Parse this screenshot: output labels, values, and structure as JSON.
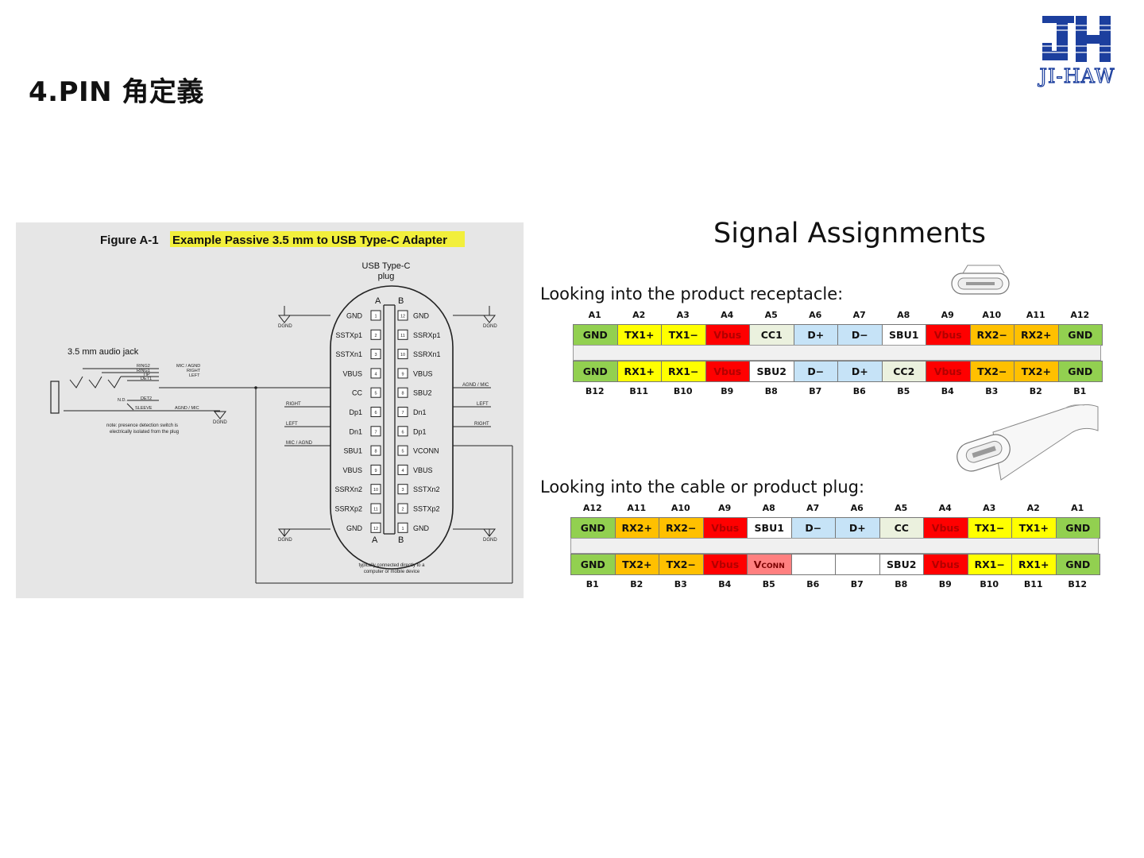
{
  "page": {
    "title": "4.PIN 角定義"
  },
  "logo": {
    "text": "JI-HAW",
    "brand_color": "#1c3f9e"
  },
  "figure": {
    "caption_prefix": "Figure A-1",
    "caption_highlight": "Example Passive 3.5 mm to USB Type-C Adapter",
    "plug_title_1": "USB Type-C",
    "plug_title_2": "plug",
    "side_a": "A",
    "side_b": "B",
    "left_pins": [
      {
        "num": "1",
        "name": "GND"
      },
      {
        "num": "2",
        "name": "SSTXp1"
      },
      {
        "num": "3",
        "name": "SSTXn1"
      },
      {
        "num": "4",
        "name": "VBUS"
      },
      {
        "num": "5",
        "name": "CC"
      },
      {
        "num": "6",
        "name": "Dp1"
      },
      {
        "num": "7",
        "name": "Dn1"
      },
      {
        "num": "8",
        "name": "SBU1"
      },
      {
        "num": "9",
        "name": "VBUS"
      },
      {
        "num": "10",
        "name": "SSRXn2"
      },
      {
        "num": "11",
        "name": "SSRXp2"
      },
      {
        "num": "12",
        "name": "GND"
      }
    ],
    "right_pins": [
      {
        "num": "12",
        "name": "GND"
      },
      {
        "num": "11",
        "name": "SSRXp1"
      },
      {
        "num": "10",
        "name": "SSRXn1"
      },
      {
        "num": "9",
        "name": "VBUS"
      },
      {
        "num": "8",
        "name": "SBU2"
      },
      {
        "num": "7",
        "name": "Dn1"
      },
      {
        "num": "6",
        "name": "Dp1"
      },
      {
        "num": "5",
        "name": "VCONN"
      },
      {
        "num": "4",
        "name": "VBUS"
      },
      {
        "num": "3",
        "name": "SSTXn2"
      },
      {
        "num": "2",
        "name": "SSTXp2"
      },
      {
        "num": "1",
        "name": "GND"
      }
    ],
    "jack_title": "3.5 mm audio jack",
    "jack_pins": [
      "RING2",
      "RING1",
      "TIP",
      "DET1",
      "DET2",
      "SLEEVE"
    ],
    "jack_signals": [
      "MIC / AGND",
      "RIGHT",
      "LEFT",
      "AGND / MIC"
    ],
    "nd_label": "N.D.",
    "dgnd": "DGND",
    "note_1": "note:  presence detection switch is",
    "note_2": "electrically isolated from the plug",
    "wire_right": "RIGHT",
    "wire_left": "LEFT",
    "wire_micagnd": "MIC / AGND",
    "wire_agndmic": "AGND / MIC",
    "device_note_1": "typically connected directly to a",
    "device_note_2": "computer or mobile device"
  },
  "signals": {
    "title": "Signal Assignments",
    "receptacle": {
      "label": "Looking into the product receptacle:",
      "top_pins": [
        "A1",
        "A2",
        "A3",
        "A4",
        "A5",
        "A6",
        "A7",
        "A8",
        "A9",
        "A10",
        "A11",
        "A12"
      ],
      "top_row": [
        {
          "text": "GND",
          "color": "#92d050"
        },
        {
          "text": "TX1+",
          "color": "#ffff00"
        },
        {
          "text": "TX1−",
          "color": "#ffff00"
        },
        {
          "text": "Vbus",
          "color": "#ff0000"
        },
        {
          "text": "CC1",
          "color": "#ebf1de"
        },
        {
          "text": "D+",
          "color": "#c6e3f7"
        },
        {
          "text": "D−",
          "color": "#c6e3f7"
        },
        {
          "text": "SBU1",
          "color": "#ffffff"
        },
        {
          "text": "Vbus",
          "color": "#ff0000"
        },
        {
          "text": "RX2−",
          "color": "#ffc000"
        },
        {
          "text": "RX2+",
          "color": "#ffc000"
        },
        {
          "text": "GND",
          "color": "#92d050"
        }
      ],
      "bottom_row": [
        {
          "text": "GND",
          "color": "#92d050"
        },
        {
          "text": "RX1+",
          "color": "#ffff00"
        },
        {
          "text": "RX1−",
          "color": "#ffff00"
        },
        {
          "text": "Vbus",
          "color": "#ff0000"
        },
        {
          "text": "SBU2",
          "color": "#ffffff"
        },
        {
          "text": "D−",
          "color": "#c6e3f7"
        },
        {
          "text": "D+",
          "color": "#c6e3f7"
        },
        {
          "text": "CC2",
          "color": "#ebf1de"
        },
        {
          "text": "Vbus",
          "color": "#ff0000"
        },
        {
          "text": "TX2−",
          "color": "#ffc000"
        },
        {
          "text": "TX2+",
          "color": "#ffc000"
        },
        {
          "text": "GND",
          "color": "#92d050"
        }
      ],
      "bottom_pins": [
        "B12",
        "B11",
        "B10",
        "B9",
        "B8",
        "B7",
        "B6",
        "B5",
        "B4",
        "B3",
        "B2",
        "B1"
      ]
    },
    "plug": {
      "label": "Looking into the cable or product plug:",
      "top_pins": [
        "A12",
        "A11",
        "A10",
        "A9",
        "A8",
        "A7",
        "A6",
        "A5",
        "A4",
        "A3",
        "A2",
        "A1"
      ],
      "top_row": [
        {
          "text": "GND",
          "color": "#92d050"
        },
        {
          "text": "RX2+",
          "color": "#ffc000"
        },
        {
          "text": "RX2−",
          "color": "#ffc000"
        },
        {
          "text": "Vbus",
          "color": "#ff0000"
        },
        {
          "text": "SBU1",
          "color": "#ffffff"
        },
        {
          "text": "D−",
          "color": "#c6e3f7"
        },
        {
          "text": "D+",
          "color": "#c6e3f7"
        },
        {
          "text": "CC",
          "color": "#ebf1de"
        },
        {
          "text": "Vbus",
          "color": "#ff0000"
        },
        {
          "text": "TX1−",
          "color": "#ffff00"
        },
        {
          "text": "TX1+",
          "color": "#ffff00"
        },
        {
          "text": "GND",
          "color": "#92d050"
        }
      ],
      "bottom_row": [
        {
          "text": "GND",
          "color": "#92d050"
        },
        {
          "text": "TX2+",
          "color": "#ffc000"
        },
        {
          "text": "TX2−",
          "color": "#ffc000"
        },
        {
          "text": "Vbus",
          "color": "#ff0000"
        },
        {
          "text": "Vconn",
          "color": "#ff8080"
        },
        {
          "text": "",
          "color": "#ffffff"
        },
        {
          "text": "",
          "color": "#ffffff"
        },
        {
          "text": "SBU2",
          "color": "#ffffff"
        },
        {
          "text": "Vbus",
          "color": "#ff0000"
        },
        {
          "text": "RX1−",
          "color": "#ffff00"
        },
        {
          "text": "RX1+",
          "color": "#ffff00"
        },
        {
          "text": "GND",
          "color": "#92d050"
        }
      ],
      "bottom_pins": [
        "B1",
        "B2",
        "B3",
        "B4",
        "B5",
        "B6",
        "B7",
        "B8",
        "B9",
        "B10",
        "B11",
        "B12"
      ]
    }
  }
}
